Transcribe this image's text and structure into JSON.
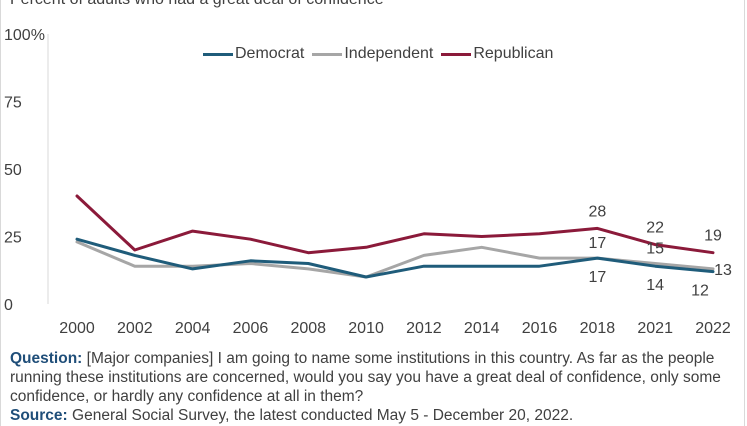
{
  "header": {
    "subtitle": "Percent of adults who had a great deal of confidence"
  },
  "chart_data": {
    "type": "line",
    "categories": [
      "2000",
      "2002",
      "2004",
      "2006",
      "2008",
      "2010",
      "2012",
      "2014",
      "2016",
      "2018",
      "2021",
      "2022"
    ],
    "ylim": [
      0,
      100
    ],
    "yticks": [
      "0",
      "25",
      "50",
      "75",
      "100%"
    ],
    "legend_position": "top-center",
    "grid": false,
    "series": [
      {
        "name": "Democrat",
        "color": "#1f5c7a",
        "values": [
          24,
          18,
          13,
          16,
          15,
          10,
          14,
          14,
          14,
          17,
          14,
          12
        ]
      },
      {
        "name": "Independent",
        "color": "#a6a6a6",
        "values": [
          23,
          14,
          14,
          15,
          13,
          10,
          18,
          21,
          17,
          17,
          15,
          13
        ]
      },
      {
        "name": "Republican",
        "color": "#8b1a3a",
        "values": [
          40,
          20,
          27,
          24,
          19,
          21,
          26,
          25,
          26,
          28,
          22,
          19
        ]
      }
    ],
    "data_labels": [
      {
        "series": "Republican",
        "index": 9,
        "text": "28"
      },
      {
        "series": "Republican",
        "index": 10,
        "text": "22"
      },
      {
        "series": "Republican",
        "index": 11,
        "text": "19"
      },
      {
        "series": "Independent",
        "index": 9,
        "text": "17"
      },
      {
        "series": "Independent",
        "index": 10,
        "text": "15"
      },
      {
        "series": "Independent",
        "index": 11,
        "text": "13"
      },
      {
        "series": "Democrat",
        "index": 9,
        "text": "17"
      },
      {
        "series": "Democrat",
        "index": 10,
        "text": "14"
      },
      {
        "series": "Democrat",
        "index": 11,
        "text": "12"
      }
    ]
  },
  "footer": {
    "question_label": "Question:",
    "question_text": " [Major companies] I am going to name some institutions in this country. As far as the people running these institutions are concerned, would you say you have a great deal of confidence, only some confidence, or hardly any confidence at all in them?",
    "source_label": "Source:",
    "source_text": " General Social Survey, the latest conducted May 5 - December 20, 2022."
  }
}
